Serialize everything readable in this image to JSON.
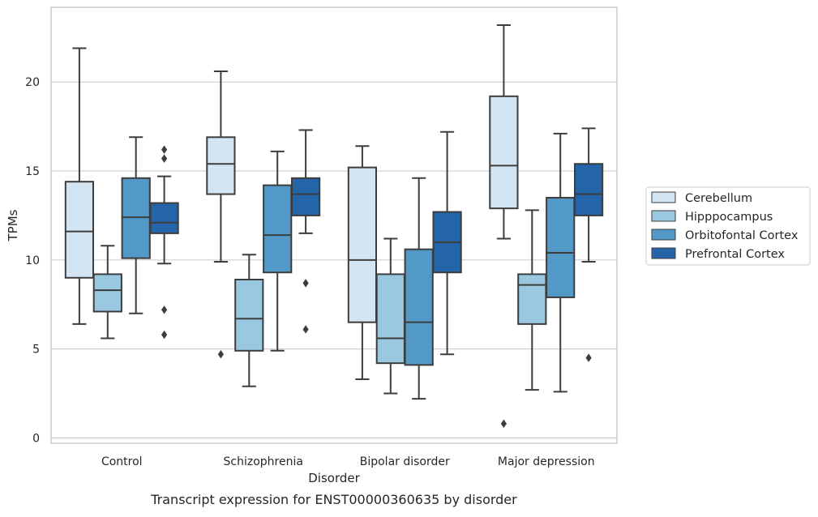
{
  "chart_data": {
    "type": "box",
    "title": "",
    "caption": "Transcript expression for ENST00000360635 by disorder",
    "xlabel": "Disorder",
    "ylabel": "TPMs",
    "ylim": [
      -0.3,
      24.2
    ],
    "yticks": [
      0,
      5,
      10,
      15,
      20
    ],
    "grid": "horizontal",
    "legend_position": "right-center",
    "categories": [
      "Control",
      "Schizophrenia",
      "Bipolar disorder",
      "Major depression"
    ],
    "series": [
      {
        "name": "Cerebellum",
        "color": "#d3e4f3",
        "boxes": [
          {
            "whisker_low": 6.4,
            "q1": 9.0,
            "median": 11.6,
            "q3": 14.4,
            "whisker_high": 21.9,
            "outliers": []
          },
          {
            "whisker_low": 9.9,
            "q1": 13.7,
            "median": 15.4,
            "q3": 16.9,
            "whisker_high": 20.6,
            "outliers": [
              4.7
            ]
          },
          {
            "whisker_low": 3.3,
            "q1": 6.5,
            "median": 10.0,
            "q3": 15.2,
            "whisker_high": 16.4,
            "outliers": []
          },
          {
            "whisker_low": 11.2,
            "q1": 12.9,
            "median": 15.3,
            "q3": 19.2,
            "whisker_high": 23.2,
            "outliers": [
              0.8
            ]
          }
        ]
      },
      {
        "name": "Hipppocampus",
        "color": "#9ac8e0",
        "boxes": [
          {
            "whisker_low": 5.6,
            "q1": 7.1,
            "median": 8.3,
            "q3": 9.2,
            "whisker_high": 10.8,
            "outliers": []
          },
          {
            "whisker_low": 2.9,
            "q1": 4.9,
            "median": 6.7,
            "q3": 8.9,
            "whisker_high": 10.3,
            "outliers": []
          },
          {
            "whisker_low": 2.5,
            "q1": 4.2,
            "median": 5.6,
            "q3": 9.2,
            "whisker_high": 11.2,
            "outliers": []
          },
          {
            "whisker_low": 2.7,
            "q1": 6.4,
            "median": 8.6,
            "q3": 9.2,
            "whisker_high": 12.8,
            "outliers": []
          }
        ]
      },
      {
        "name": "Orbitofontal Cortex",
        "color": "#5399c7",
        "boxes": [
          {
            "whisker_low": 7.0,
            "q1": 10.1,
            "median": 12.4,
            "q3": 14.6,
            "whisker_high": 16.9,
            "outliers": []
          },
          {
            "whisker_low": 4.9,
            "q1": 9.3,
            "median": 11.4,
            "q3": 14.2,
            "whisker_high": 16.1,
            "outliers": []
          },
          {
            "whisker_low": 2.2,
            "q1": 4.1,
            "median": 6.5,
            "q3": 10.6,
            "whisker_high": 14.6,
            "outliers": []
          },
          {
            "whisker_low": 2.6,
            "q1": 7.9,
            "median": 10.4,
            "q3": 13.5,
            "whisker_high": 17.1,
            "outliers": []
          }
        ]
      },
      {
        "name": "Prefrontal Cortex",
        "color": "#2464a9",
        "boxes": [
          {
            "whisker_low": 9.8,
            "q1": 11.5,
            "median": 12.1,
            "q3": 13.2,
            "whisker_high": 14.7,
            "outliers": [
              5.8,
              7.2,
              15.7,
              16.2
            ]
          },
          {
            "whisker_low": 11.5,
            "q1": 12.5,
            "median": 13.7,
            "q3": 14.6,
            "whisker_high": 17.3,
            "outliers": [
              6.1,
              8.7
            ]
          },
          {
            "whisker_low": 4.7,
            "q1": 9.3,
            "median": 11.0,
            "q3": 12.7,
            "whisker_high": 17.2,
            "outliers": []
          },
          {
            "whisker_low": 9.9,
            "q1": 12.5,
            "median": 13.7,
            "q3": 15.4,
            "whisker_high": 17.4,
            "outliers": [
              4.5
            ]
          }
        ]
      }
    ]
  }
}
